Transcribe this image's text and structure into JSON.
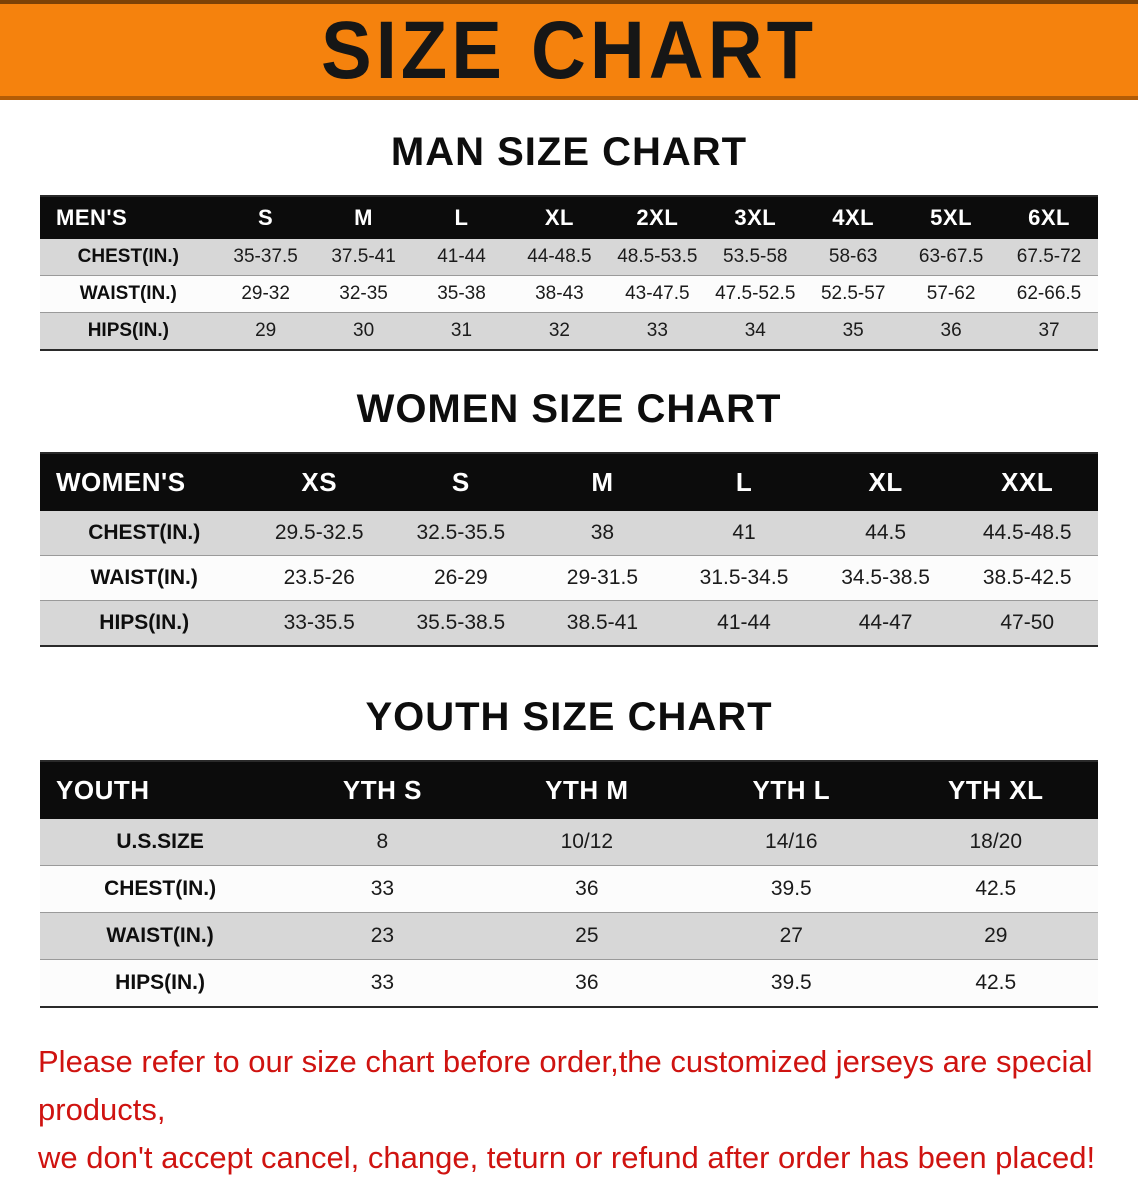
{
  "banner": {
    "title": "SIZE CHART"
  },
  "sections": [
    {
      "heading": "MAN SIZE CHART",
      "table": {
        "header": [
          "MEN'S",
          "S",
          "M",
          "L",
          "XL",
          "2XL",
          "3XL",
          "4XL",
          "5XL",
          "6XL"
        ],
        "rows": [
          [
            "CHEST(IN.)",
            "35-37.5",
            "37.5-41",
            "41-44",
            "44-48.5",
            "48.5-53.5",
            "53.5-58",
            "58-63",
            "63-67.5",
            "67.5-72"
          ],
          [
            "WAIST(IN.)",
            "29-32",
            "32-35",
            "35-38",
            "38-43",
            "43-47.5",
            "47.5-52.5",
            "52.5-57",
            "57-62",
            "62-66.5"
          ],
          [
            "HIPS(IN.)",
            "29",
            "30",
            "31",
            "32",
            "33",
            "34",
            "35",
            "36",
            "37"
          ]
        ]
      }
    },
    {
      "heading": "WOMEN SIZE CHART",
      "table": {
        "header": [
          "WOMEN'S",
          "XS",
          "S",
          "M",
          "L",
          "XL",
          "XXL"
        ],
        "rows": [
          [
            "CHEST(IN.)",
            "29.5-32.5",
            "32.5-35.5",
            "38",
            "41",
            "44.5",
            "44.5-48.5"
          ],
          [
            "WAIST(IN.)",
            "23.5-26",
            "26-29",
            "29-31.5",
            "31.5-34.5",
            "34.5-38.5",
            "38.5-42.5"
          ],
          [
            "HIPS(IN.)",
            "33-35.5",
            "35.5-38.5",
            "38.5-41",
            "41-44",
            "44-47",
            "47-50"
          ]
        ]
      }
    },
    {
      "heading": "YOUTH SIZE CHART",
      "table": {
        "header": [
          "YOUTH",
          "YTH S",
          "YTH M",
          "YTH L",
          "YTH XL"
        ],
        "rows": [
          [
            "U.S.SIZE",
            "8",
            "10/12",
            "14/16",
            "18/20"
          ],
          [
            "CHEST(IN.)",
            "33",
            "36",
            "39.5",
            "42.5"
          ],
          [
            "WAIST(IN.)",
            "23",
            "25",
            "27",
            "29"
          ],
          [
            "HIPS(IN.)",
            "33",
            "36",
            "39.5",
            "42.5"
          ]
        ]
      }
    }
  ],
  "footer": {
    "line1": "Please refer to our size chart before order,the customized jerseys are special products,",
    "line2": "we don't accept cancel, change, teturn or refund after order has been placed!"
  },
  "colors": {
    "banner_bg": "#f5820d",
    "table_header_bg": "#0c0c0c",
    "row_alt_bg": "#d7d7d7",
    "footer_text": "#cf1310"
  }
}
